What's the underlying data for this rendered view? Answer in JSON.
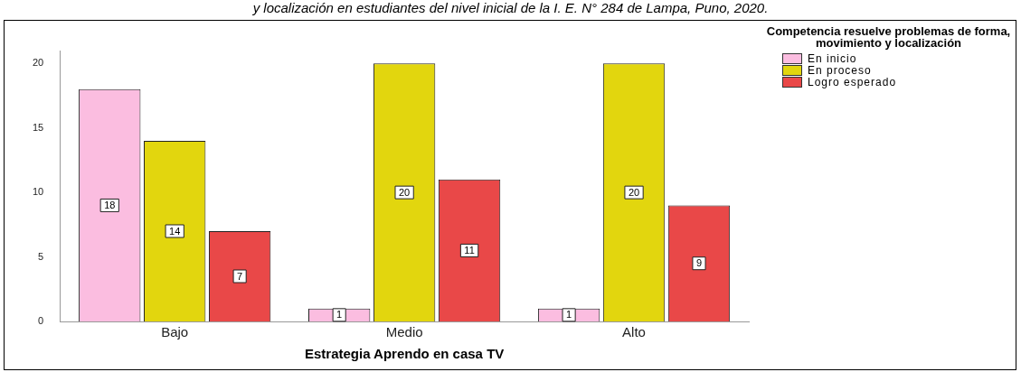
{
  "chart_data": {
    "type": "bar",
    "title": "y localización en estudiantes del nivel inicial de la I. E. N° 284 de Lampa, Puno, 2020.",
    "xlabel": "Estrategia Aprendo en casa TV",
    "legend_title": "Competencia resuelve problemas de forma, movimiento y localización",
    "categories": [
      "Bajo",
      "Medio",
      "Alto"
    ],
    "series": [
      {
        "name": "En inicio",
        "color": "#fbbde0",
        "values": [
          18,
          1,
          1
        ]
      },
      {
        "name": "En proceso",
        "color": "#e2d60e",
        "values": [
          14,
          20,
          20
        ]
      },
      {
        "name": "Logro esperado",
        "color": "#e94848",
        "values": [
          7,
          11,
          9
        ]
      }
    ],
    "ylim": [
      0,
      21
    ],
    "yticks": [
      0,
      5,
      10,
      15,
      20
    ],
    "grid": false,
    "legend": "top right",
    "data_labels": true
  }
}
